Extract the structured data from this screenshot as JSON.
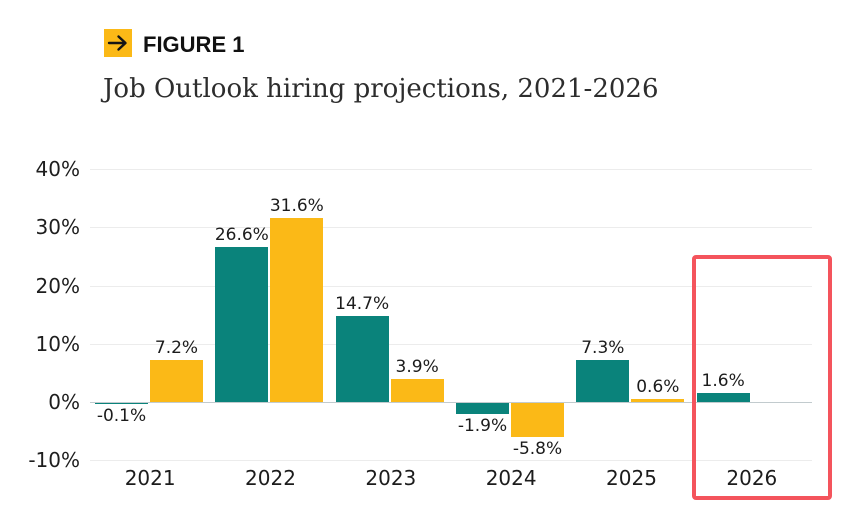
{
  "header": {
    "figure_label": "FIGURE 1",
    "title": "Job Outlook hiring projections, 2021-2026",
    "badge_color": "#fbb917",
    "arrow_icon": "right-arrow"
  },
  "chart_data": {
    "type": "bar",
    "title": "Job Outlook hiring projections, 2021-2026",
    "categories": [
      "2021",
      "2022",
      "2023",
      "2024",
      "2025",
      "2026"
    ],
    "series": [
      {
        "name": "teal-series",
        "color": "#0a837b",
        "values": [
          -0.1,
          26.6,
          14.7,
          -1.9,
          7.3,
          1.6
        ],
        "labels": [
          "-0.1%",
          "26.6%",
          "14.7%",
          "-1.9%",
          "7.3%",
          "1.6%"
        ]
      },
      {
        "name": "yellow-series",
        "color": "#fbb917",
        "values": [
          7.2,
          31.6,
          3.9,
          -5.8,
          0.6,
          null
        ],
        "labels": [
          "7.2%",
          "31.6%",
          "3.9%",
          "-5.8%",
          "0.6%",
          null
        ]
      }
    ],
    "y_axis": {
      "ticks": [
        {
          "label": "40%",
          "value": 40
        },
        {
          "label": "30%",
          "value": 30
        },
        {
          "label": "20%",
          "value": 20
        },
        {
          "label": "10%",
          "value": 10
        },
        {
          "label": "0%",
          "value": 0
        },
        {
          "label": "-10%",
          "value": -10
        }
      ],
      "min": -10,
      "max": 40
    },
    "grid": true,
    "legend_position": "none",
    "highlight": {
      "category": "2026",
      "color": "#f4545c"
    }
  }
}
